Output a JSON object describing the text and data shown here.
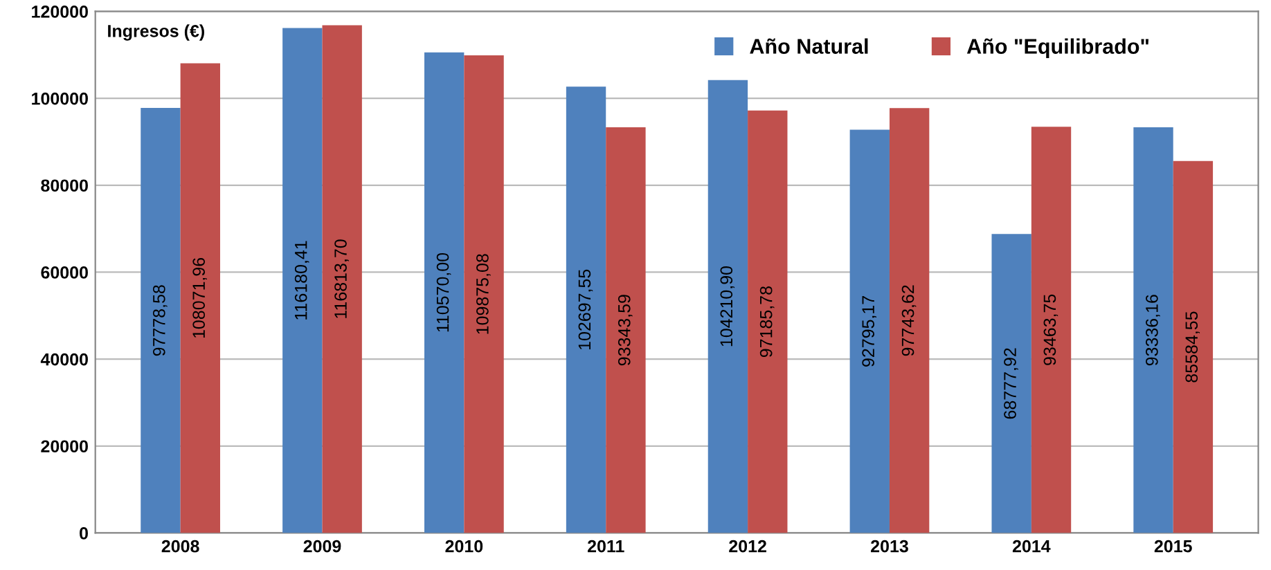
{
  "chart_data": {
    "type": "bar",
    "ylabel": "Ingresos (€)",
    "categories": [
      "2008",
      "2009",
      "2010",
      "2011",
      "2012",
      "2013",
      "2014",
      "2015"
    ],
    "series": [
      {
        "name": "Año Natural",
        "color": "#4f81bd",
        "values": [
          97778.58,
          116180.41,
          110570.0,
          102697.55,
          104210.9,
          92795.17,
          68777.92,
          93336.16
        ],
        "value_labels": [
          "97778,58",
          "116180,41",
          "110570,00",
          "102697,55",
          "104210,90",
          "92795,17",
          "68777,92",
          "93336,16"
        ]
      },
      {
        "name": "Año \"Equilibrado\"",
        "color": "#c0504d",
        "values": [
          108071.96,
          116813.7,
          109875.08,
          93343.59,
          97185.78,
          97743.62,
          93463.75,
          85584.55
        ],
        "value_labels": [
          "108071,96",
          "116813,70",
          "109875,08",
          "93343,59",
          "97185,78",
          "97743,62",
          "93463,75",
          "85584,55"
        ]
      }
    ],
    "ylim": [
      0,
      120000
    ],
    "yticks": [
      0,
      20000,
      40000,
      60000,
      80000,
      100000,
      120000
    ],
    "grid": "y",
    "legend": "top"
  }
}
